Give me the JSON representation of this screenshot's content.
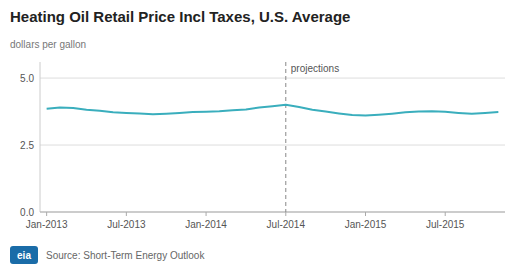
{
  "chart_data": {
    "type": "line",
    "title": "Heating Oil Retail Price Incl Taxes, U.S. Average",
    "ylabel": "dollars per gallon",
    "source": "Source: Short-Term Energy Outlook",
    "logo": "eia",
    "categories": [
      "Jan-2013",
      null,
      null,
      null,
      null,
      null,
      "Jul-2013",
      null,
      null,
      null,
      null,
      null,
      "Jan-2014",
      null,
      null,
      null,
      null,
      null,
      "Jul-2014",
      null,
      null,
      null,
      null,
      null,
      "Jan-2015",
      null,
      null,
      null,
      null,
      null,
      "Jul-2015",
      null,
      null,
      null,
      null
    ],
    "values": [
      3.85,
      3.9,
      3.88,
      3.82,
      3.78,
      3.72,
      3.7,
      3.68,
      3.65,
      3.67,
      3.7,
      3.73,
      3.74,
      3.76,
      3.8,
      3.83,
      3.9,
      3.95,
      4.0,
      3.92,
      3.82,
      3.75,
      3.68,
      3.62,
      3.6,
      3.63,
      3.67,
      3.72,
      3.75,
      3.76,
      3.74,
      3.7,
      3.67,
      3.7,
      3.73
    ],
    "color": "#3aaebd",
    "ylim": [
      0.0,
      5.6
    ],
    "yticks": [
      {
        "value": 0.0,
        "label": "0.0"
      },
      2.5,
      {
        "value": 5.0,
        "label": "5.0"
      }
    ],
    "grid": true,
    "annotations": [
      {
        "text": "projections",
        "x": "Jul-2014"
      }
    ]
  }
}
